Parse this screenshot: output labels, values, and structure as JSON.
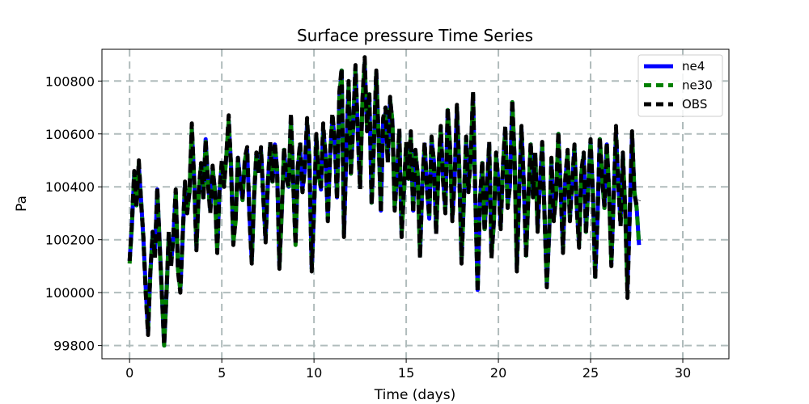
{
  "chart_data": {
    "type": "line",
    "title": "Surface pressure Time Series",
    "xlabel": "Time (days)",
    "ylabel": "Pa",
    "xlim": [
      -1.5,
      32.5
    ],
    "ylim": [
      99750,
      100920
    ],
    "xticks": [
      0,
      5,
      10,
      15,
      20,
      25,
      30
    ],
    "yticks": [
      99800,
      100000,
      100200,
      100400,
      100600,
      100800
    ],
    "grid": true,
    "grid_style": "dashed",
    "legend_position": "top-right",
    "sampling": "every 3 hours (approximate reading)",
    "x_start": 0,
    "x_step": 0.125,
    "series": [
      {
        "name": "ne4",
        "color": "#0000ff",
        "style": "solid",
        "values": [
          100120,
          100250,
          100450,
          100330,
          100480,
          100350,
          100200,
          100020,
          99850,
          100070,
          100230,
          100140,
          100390,
          100200,
          100000,
          99800,
          99990,
          100220,
          100110,
          100210,
          100380,
          100090,
          100010,
          100200,
          100410,
          100310,
          100380,
          100620,
          100430,
          100170,
          100380,
          100480,
          100360,
          100580,
          100420,
          100310,
          100470,
          100390,
          100160,
          100380,
          100490,
          100410,
          100520,
          100650,
          100480,
          100190,
          100280,
          100510,
          100420,
          100350,
          100500,
          100540,
          100290,
          100120,
          100360,
          100520,
          100460,
          100540,
          100370,
          100200,
          100410,
          100560,
          100420,
          100560,
          100470,
          100100,
          100300,
          100540,
          100440,
          100400,
          100660,
          100420,
          100190,
          100470,
          100560,
          100390,
          100460,
          100640,
          100510,
          100090,
          100300,
          100590,
          100450,
          100390,
          100620,
          100520,
          100280,
          100520,
          100660,
          100580,
          100360,
          100740,
          100840,
          100220,
          100520,
          100790,
          100450,
          100630,
          100850,
          100610,
          100400,
          100720,
          100870,
          100620,
          100750,
          100340,
          100560,
          100830,
          100600,
          100310,
          100650,
          100680,
          100500,
          100730,
          100650,
          100320,
          100440,
          100610,
          100220,
          100380,
          100560,
          100430,
          100600,
          100310,
          100530,
          100450,
          100140,
          100410,
          100560,
          100400,
          100280,
          100580,
          100500,
          100230,
          100460,
          100620,
          100430,
          100310,
          100690,
          100560,
          100280,
          100420,
          100700,
          100480,
          100120,
          100340,
          100580,
          100390,
          100510,
          100750,
          100360,
          100010,
          100340,
          100490,
          100240,
          100380,
          100560,
          100140,
          100260,
          100520,
          100420,
          100250,
          100480,
          100620,
          100330,
          100400,
          100720,
          100520,
          100090,
          100380,
          100620,
          100420,
          100140,
          100360,
          100560,
          100370,
          100520,
          100240,
          100410,
          100560,
          100300,
          100030,
          100220,
          100500,
          100280,
          100360,
          100600,
          100400,
          100160,
          100420,
          100530,
          100280,
          100410,
          100550,
          100330,
          100180,
          100450,
          100520,
          100230,
          100400,
          100570,
          100380,
          100060,
          100280,
          100580,
          100440,
          100320,
          100560,
          100390,
          100110,
          100350,
          100600,
          100420,
          100260,
          100520,
          100320,
          100020,
          100300,
          100600,
          100380,
          100320,
          100180
        ]
      },
      {
        "name": "ne30",
        "color": "#008000",
        "style": "dashed",
        "values": [
          100110,
          100250,
          100450,
          100330,
          100490,
          100350,
          100200,
          100010,
          99850,
          100070,
          100220,
          100140,
          100390,
          100190,
          100000,
          99800,
          99990,
          100220,
          100110,
          100210,
          100380,
          100090,
          100010,
          100200,
          100410,
          100310,
          100380,
          100620,
          100430,
          100170,
          100380,
          100480,
          100360,
          100570,
          100420,
          100310,
          100470,
          100380,
          100160,
          100380,
          100490,
          100410,
          100520,
          100650,
          100480,
          100190,
          100270,
          100500,
          100420,
          100350,
          100500,
          100540,
          100290,
          100120,
          100360,
          100520,
          100460,
          100530,
          100370,
          100200,
          100410,
          100560,
          100420,
          100560,
          100470,
          100100,
          100300,
          100540,
          100440,
          100390,
          100650,
          100420,
          100180,
          100470,
          100560,
          100380,
          100460,
          100640,
          100510,
          100090,
          100300,
          100590,
          100450,
          100390,
          100620,
          100520,
          100280,
          100520,
          100660,
          100580,
          100360,
          100740,
          100840,
          100220,
          100520,
          100790,
          100450,
          100630,
          100850,
          100610,
          100400,
          100720,
          100870,
          100620,
          100750,
          100340,
          100560,
          100830,
          100600,
          100310,
          100650,
          100680,
          100500,
          100730,
          100650,
          100320,
          100440,
          100610,
          100220,
          100380,
          100560,
          100430,
          100600,
          100310,
          100530,
          100450,
          100140,
          100410,
          100560,
          100400,
          100280,
          100580,
          100500,
          100230,
          100460,
          100620,
          100430,
          100310,
          100690,
          100560,
          100280,
          100420,
          100700,
          100480,
          100120,
          100340,
          100580,
          100390,
          100510,
          100750,
          100360,
          100010,
          100340,
          100490,
          100240,
          100380,
          100560,
          100140,
          100260,
          100520,
          100420,
          100250,
          100480,
          100620,
          100330,
          100400,
          100720,
          100520,
          100090,
          100380,
          100620,
          100420,
          100140,
          100360,
          100560,
          100370,
          100520,
          100240,
          100410,
          100560,
          100300,
          100030,
          100220,
          100500,
          100280,
          100360,
          100600,
          100400,
          100160,
          100420,
          100530,
          100280,
          100410,
          100550,
          100330,
          100180,
          100450,
          100520,
          100230,
          100400,
          100570,
          100380,
          100060,
          100280,
          100580,
          100440,
          100320,
          100560,
          100390,
          100110,
          100350,
          100600,
          100420,
          100260,
          100520,
          100320,
          100020,
          100300,
          100600,
          100380,
          100320,
          100180
        ]
      },
      {
        "name": "OBS",
        "color": "#000000",
        "style": "dashed",
        "values": [
          100120,
          100260,
          100460,
          100320,
          100500,
          100340,
          100210,
          100000,
          99840,
          100080,
          100230,
          100130,
          100400,
          100190,
          99990,
          99800,
          100000,
          100230,
          100100,
          100220,
          100390,
          100080,
          100000,
          100210,
          100420,
          100300,
          100390,
          100640,
          100420,
          100160,
          100390,
          100490,
          100350,
          100580,
          100410,
          100300,
          100480,
          100380,
          100150,
          100390,
          100500,
          100400,
          100530,
          100670,
          100470,
          100180,
          100280,
          100510,
          100410,
          100360,
          100510,
          100550,
          100280,
          100110,
          100370,
          100530,
          100450,
          100550,
          100360,
          100190,
          100420,
          100570,
          100410,
          100570,
          100460,
          100090,
          100310,
          100550,
          100430,
          100400,
          100680,
          100410,
          100180,
          100480,
          100570,
          100380,
          100470,
          100660,
          100500,
          100080,
          100310,
          100600,
          100440,
          100400,
          100640,
          100510,
          100270,
          100530,
          100680,
          100570,
          100350,
          100760,
          100850,
          100210,
          100530,
          100800,
          100440,
          100640,
          100860,
          100600,
          100390,
          100730,
          100890,
          100610,
          100760,
          100330,
          100570,
          100840,
          100590,
          100300,
          100660,
          100700,
          100490,
          100740,
          100640,
          100310,
          100450,
          100620,
          100210,
          100390,
          100570,
          100420,
          100610,
          100300,
          100540,
          100440,
          100130,
          100420,
          100570,
          100390,
          100290,
          100590,
          100490,
          100220,
          100470,
          100630,
          100420,
          100300,
          100700,
          100550,
          100270,
          100430,
          100710,
          100470,
          100110,
          100350,
          100590,
          100380,
          100520,
          100760,
          100350,
          100000,
          100350,
          100500,
          100230,
          100390,
          100570,
          100130,
          100270,
          100530,
          100410,
          100240,
          100490,
          100630,
          100320,
          100410,
          100730,
          100510,
          100080,
          100390,
          100630,
          100410,
          100130,
          100370,
          100570,
          100360,
          100530,
          100230,
          100420,
          100570,
          100290,
          100020,
          100230,
          100510,
          100270,
          100370,
          100610,
          100390,
          100150,
          100430,
          100540,
          100270,
          100420,
          100560,
          100320,
          100170,
          100460,
          100530,
          100220,
          100410,
          100580,
          100370,
          100050,
          100290,
          100590,
          100430,
          100330,
          100570,
          100380,
          100100,
          100360,
          100630,
          100410,
          100250,
          100530,
          100310,
          99980,
          100310,
          100610,
          100370,
          100330,
          100350
        ]
      }
    ]
  }
}
